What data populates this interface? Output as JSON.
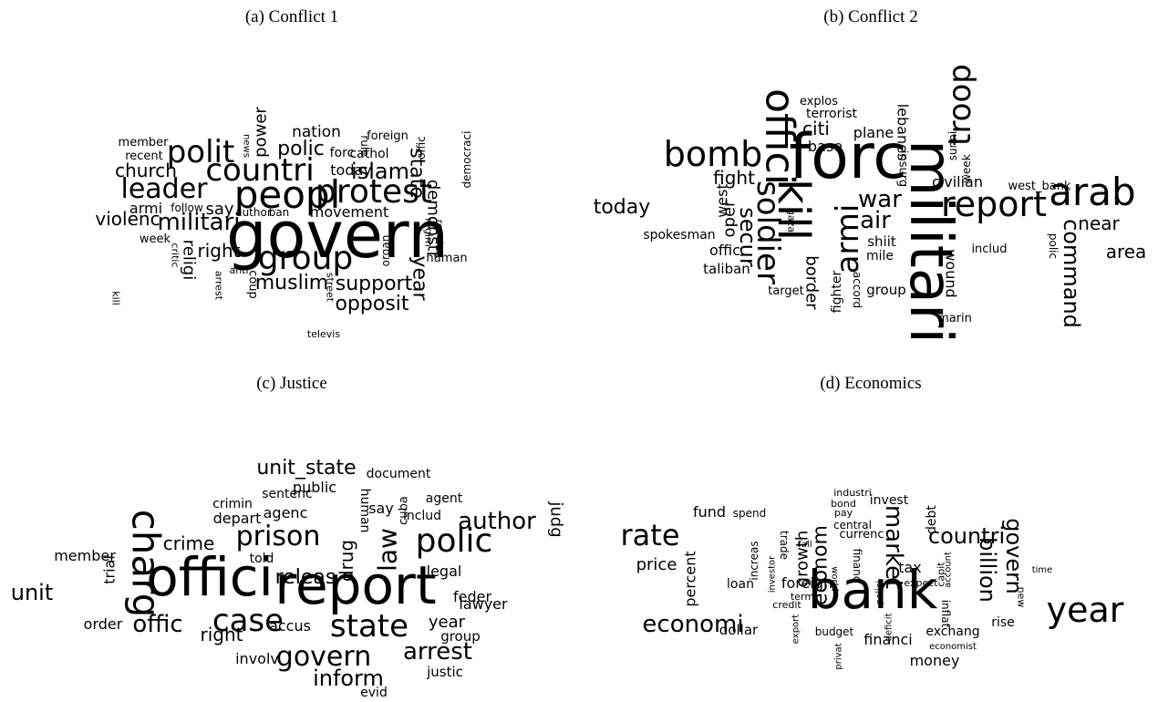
{
  "panels": [
    {
      "caption": "(a) Conflict 1",
      "words": [
        "govern",
        "peopl",
        "protest",
        "countri",
        "polit",
        "leader",
        "group",
        "militari",
        "islam",
        "church",
        "polic",
        "nation",
        "power",
        "support",
        "opposit",
        "muslim",
        "right",
        "violenc",
        "religi",
        "year",
        "state",
        "demonstr",
        "today",
        "movement",
        "say",
        "armi",
        "member",
        "recent",
        "week",
        "follow",
        "author",
        "ban",
        "foreign",
        "forc",
        "cathol",
        "offic",
        "democraci",
        "rule",
        "organ",
        "human",
        "revolut",
        "regim",
        "critic",
        "arrest",
        "anti",
        "coup",
        "street",
        "televis",
        "news",
        "kill"
      ]
    },
    {
      "caption": "(b) Conflict 2",
      "words": [
        "militari",
        "forc",
        "kill",
        "offici",
        "soldier",
        "armi",
        "bomb",
        "troop",
        "report",
        "arab",
        "war",
        "air",
        "secur",
        "fight",
        "oper",
        "west",
        "today",
        "command",
        "near",
        "area",
        "citi",
        "plane",
        "base",
        "terrorist",
        "explos",
        "lebanes",
        "insurg",
        "civilian",
        "west_bank",
        "sunni",
        "week",
        "polic",
        "includ",
        "spokesman",
        "offic",
        "taliban",
        "target",
        "border",
        "fighter",
        "gaza",
        "accord",
        "shiit",
        "mile",
        "group",
        "wound",
        "marin"
      ]
    },
    {
      "caption": "(c) Justice",
      "words": [
        "offici",
        "report",
        "charg",
        "case",
        "state",
        "polic",
        "govern",
        "prison",
        "law",
        "author",
        "releas",
        "drug",
        "offic",
        "arrest",
        "inform",
        "unit_state",
        "unit",
        "crime",
        "right",
        "accus",
        "legal",
        "feder",
        "lawyer",
        "year",
        "group",
        "justic",
        "order",
        "member",
        "trial",
        "told",
        "depart",
        "agenc",
        "crimin",
        "sentenc",
        "public",
        "human",
        "say",
        "cuba",
        "agent",
        "includ",
        "document",
        "judg",
        "involv",
        "evid"
      ]
    },
    {
      "caption": "(d) Economics",
      "words": [
        "bank",
        "year",
        "rate",
        "economi",
        "market",
        "billion",
        "govern",
        "countri",
        "econom",
        "growth",
        "price",
        "percent",
        "fund",
        "spend",
        "dollar",
        "loan",
        "foreign",
        "financi",
        "money",
        "tax",
        "invest",
        "debt",
        "exchang",
        "rise",
        "industri",
        "bond",
        "pay",
        "central",
        "currenc",
        "trade",
        "fall",
        "financ",
        "world",
        "increas",
        "investor",
        "term",
        "credit",
        "export",
        "budget",
        "privat",
        "polici",
        "deficit",
        "expect",
        "capit",
        "account",
        "inflat",
        "economist",
        "new",
        "time"
      ]
    }
  ]
}
